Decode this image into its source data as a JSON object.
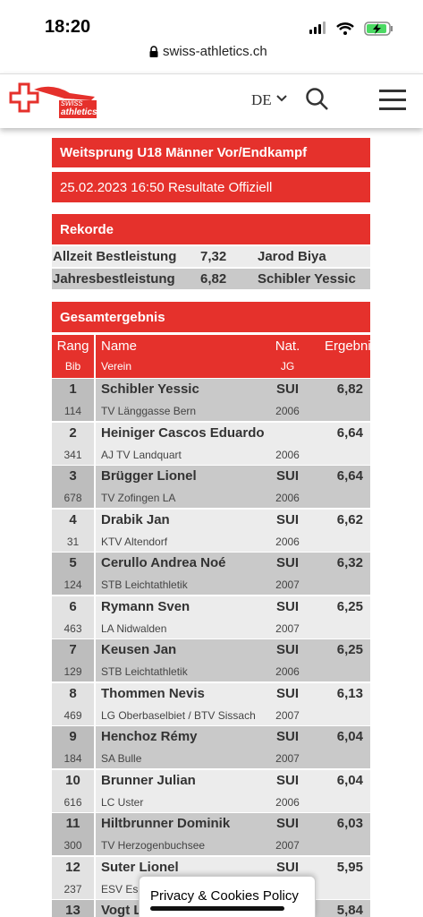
{
  "status_bar": {
    "time": "18:20",
    "url": "swiss-athletics.ch"
  },
  "header": {
    "logo_top": "swiss",
    "logo_bottom": "athletics",
    "language": "DE"
  },
  "event": {
    "title": "Weitsprung U18 Männer Vor/Endkampf",
    "info": "25.02.2023 16:50 Resultate Offiziell"
  },
  "records": {
    "title": "Rekorde",
    "rows": [
      [
        "Allzeit Bestleistung",
        "7,32",
        "Jarod Biya"
      ],
      [
        "Jahresbestleistung",
        "6,82",
        "Schibler Yessic"
      ]
    ]
  },
  "results": {
    "title": "Gesamtergebnis",
    "columns": [
      [
        "Rang",
        "Bib"
      ],
      [
        "Name",
        "Verein"
      ],
      [
        "Nat.",
        "JG"
      ],
      [
        "Ergebnis"
      ]
    ],
    "rows": [
      [
        "1",
        "Schibler Yessic",
        "SUI",
        "6,82",
        "114",
        "TV Länggasse Bern",
        "2006"
      ],
      [
        "2",
        "Heiniger Cascos Eduardo",
        "",
        "6,64",
        "341",
        "AJ TV Landquart",
        "2006"
      ],
      [
        "3",
        "Brügger Lionel",
        "SUI",
        "6,64",
        "678",
        "TV Zofingen LA",
        "2006"
      ],
      [
        "4",
        "Drabik Jan",
        "SUI",
        "6,62",
        "31",
        "KTV Altendorf",
        "2006"
      ],
      [
        "5",
        "Cerullo Andrea Noé",
        "SUI",
        "6,32",
        "124",
        "STB Leichtathletik",
        "2007"
      ],
      [
        "6",
        "Rymann Sven",
        "SUI",
        "6,25",
        "463",
        "LA Nidwalden",
        "2007"
      ],
      [
        "7",
        "Keusen Jan",
        "SUI",
        "6,25",
        "129",
        "STB Leichtathletik",
        "2006"
      ],
      [
        "8",
        "Thommen Nevis",
        "SUI",
        "6,13",
        "469",
        "LG Oberbaselbiet / BTV Sissach",
        "2007"
      ],
      [
        "9",
        "Henchoz Rémy",
        "SUI",
        "6,04",
        "184",
        "SA Bulle",
        "2007"
      ],
      [
        "10",
        "Brunner Julian",
        "SUI",
        "6,04",
        "616",
        "LC Uster",
        "2006"
      ],
      [
        "11",
        "Hiltbrunner Dominik",
        "SUI",
        "6,03",
        "300",
        "TV Herzogenbuchsee",
        "2007"
      ],
      [
        "12",
        "Suter Lionel",
        "SUI",
        "5,95",
        "237",
        "ESV Es",
        ""
      ],
      [
        "13",
        "Vogt L",
        "",
        "5,84",
        "",
        "",
        ""
      ]
    ]
  },
  "cookie_banner": {
    "text": "Privacy & Cookies Policy"
  }
}
